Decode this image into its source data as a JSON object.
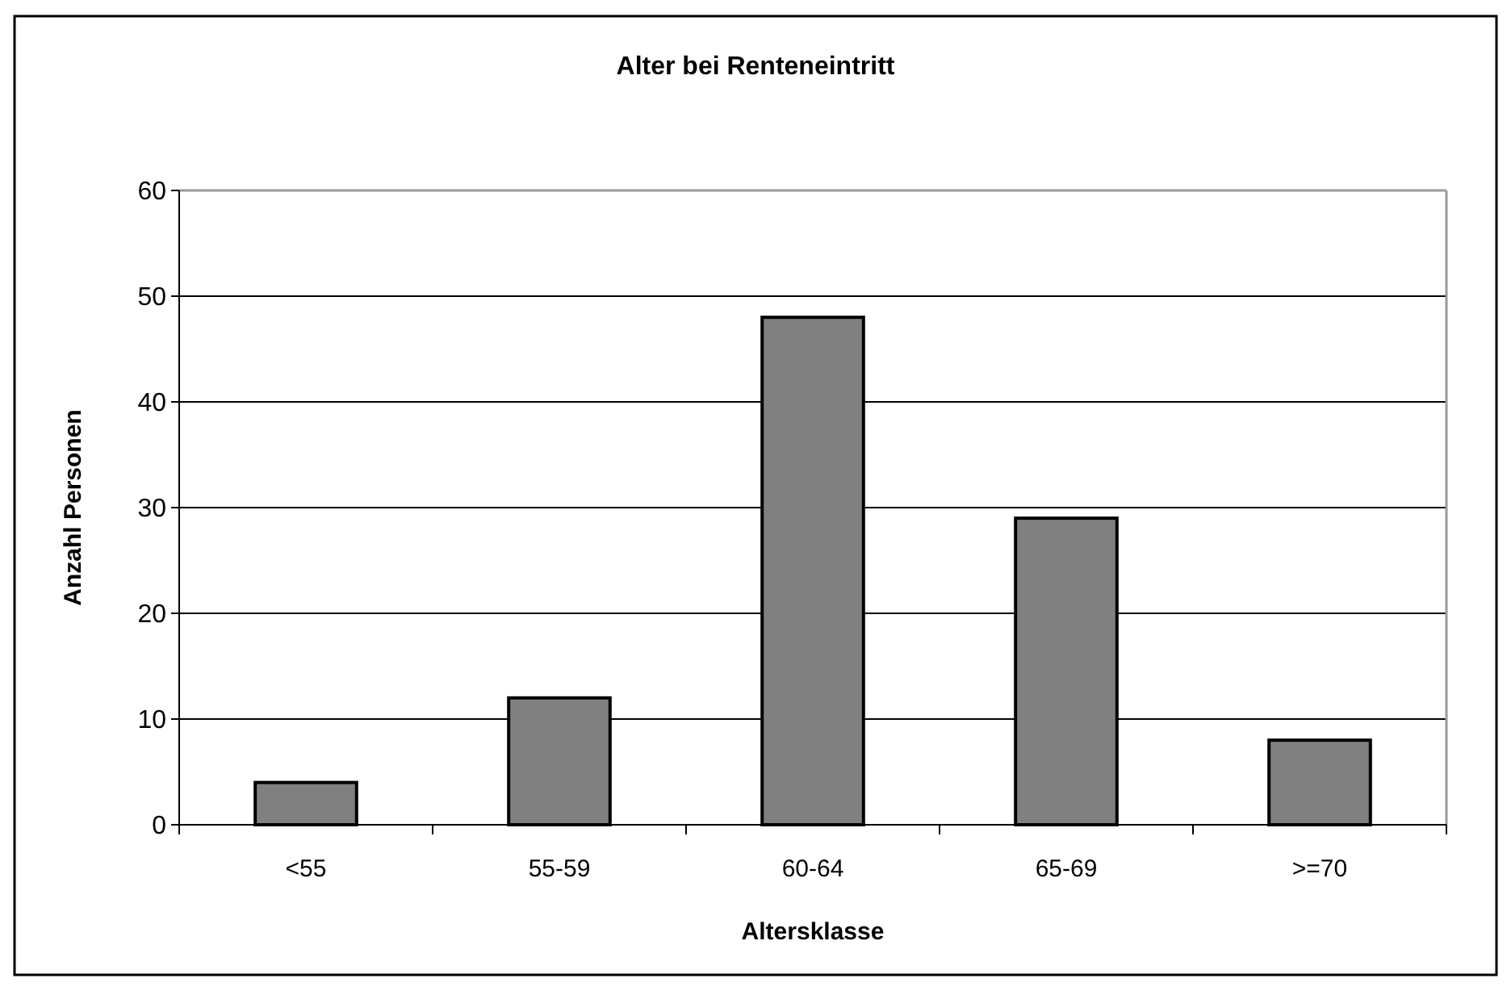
{
  "chart_data": {
    "type": "bar",
    "title": "Alter bei Renteneintritt",
    "xlabel": "Altersklasse",
    "ylabel": "Anzahl Personen",
    "categories": [
      "<55",
      "55-59",
      "60-64",
      "65-69",
      ">=70"
    ],
    "values": [
      4,
      12,
      48,
      29,
      8
    ],
    "color": "#808080",
    "ylim": [
      0,
      60
    ],
    "yticks": [
      0,
      10,
      20,
      30,
      40,
      50,
      60
    ],
    "grid": "y"
  }
}
